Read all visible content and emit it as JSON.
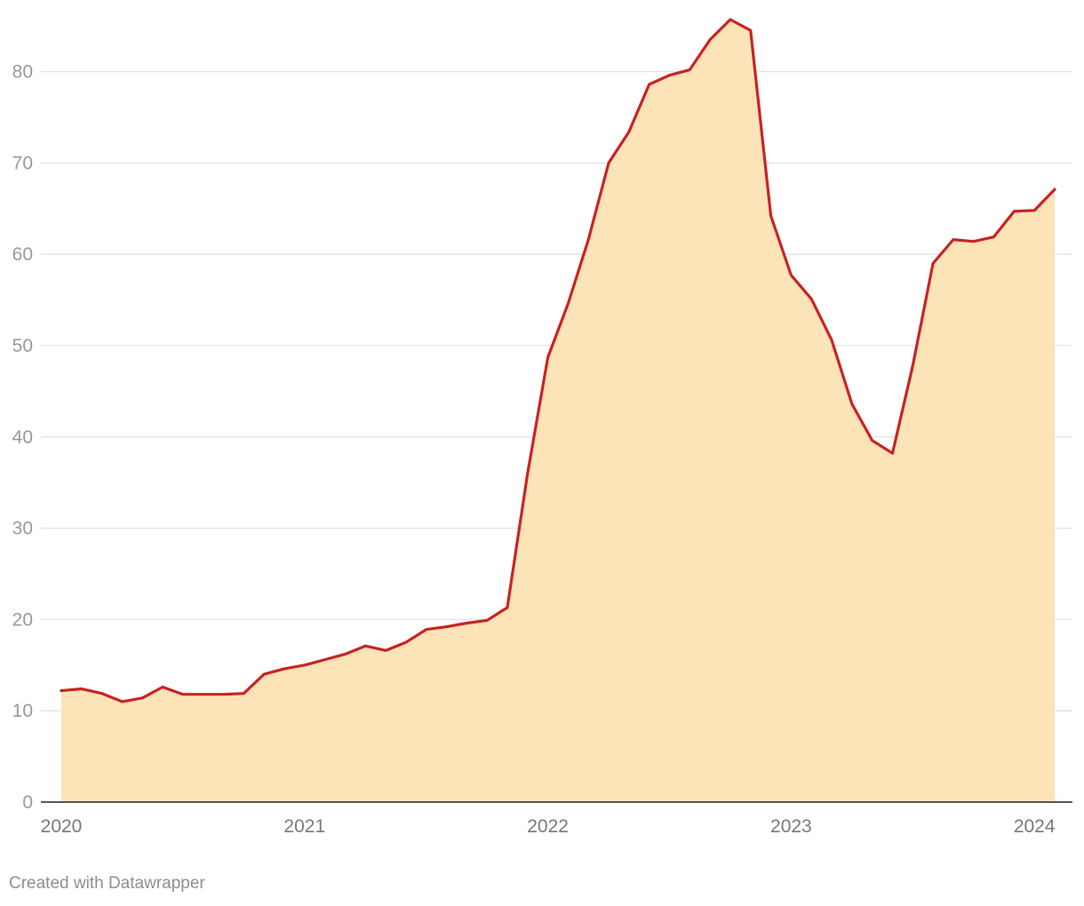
{
  "chart_data": {
    "type": "area",
    "title": "",
    "xlabel": "",
    "ylabel": "",
    "ylim": [
      0,
      85.7
    ],
    "yticks": [
      0,
      10,
      20,
      30,
      40,
      50,
      60,
      70,
      80
    ],
    "xtick_labels": [
      "2020",
      "2021",
      "2022",
      "2023",
      "2024"
    ],
    "x": [
      "2020-01",
      "2020-02",
      "2020-03",
      "2020-04",
      "2020-05",
      "2020-06",
      "2020-07",
      "2020-08",
      "2020-09",
      "2020-10",
      "2020-11",
      "2020-12",
      "2021-01",
      "2021-02",
      "2021-03",
      "2021-04",
      "2021-05",
      "2021-06",
      "2021-07",
      "2021-08",
      "2021-09",
      "2021-10",
      "2021-11",
      "2021-12",
      "2022-01",
      "2022-02",
      "2022-03",
      "2022-04",
      "2022-05",
      "2022-06",
      "2022-07",
      "2022-08",
      "2022-09",
      "2022-10",
      "2022-11",
      "2022-12",
      "2023-01",
      "2023-02",
      "2023-03",
      "2023-04",
      "2023-05",
      "2023-06",
      "2023-07",
      "2023-08",
      "2023-09",
      "2023-10",
      "2023-11",
      "2023-12",
      "2024-01",
      "2024-02"
    ],
    "series": [
      {
        "values": [
          12.2,
          12.4,
          11.9,
          11.0,
          11.4,
          12.6,
          11.8,
          11.8,
          11.8,
          11.9,
          14.0,
          14.6,
          15.0,
          15.6,
          16.2,
          17.1,
          16.6,
          17.5,
          18.9,
          19.2,
          19.6,
          19.9,
          21.3,
          36.0,
          48.7,
          54.6,
          61.6,
          70.0,
          73.4,
          78.6,
          79.6,
          80.2,
          83.5,
          85.7,
          84.5,
          64.2,
          57.7,
          55.1,
          50.6,
          43.6,
          39.6,
          38.2,
          47.8,
          59.0,
          61.6,
          61.4,
          61.9,
          64.7,
          64.8,
          67.1
        ]
      }
    ],
    "colors": {
      "line": "#c92424",
      "fill": "#fde3b8",
      "grid": "#e3e3e3",
      "axis": "#222222"
    },
    "grid": true,
    "legend": "none"
  },
  "footer": {
    "credit": "Created with Datawrapper"
  }
}
